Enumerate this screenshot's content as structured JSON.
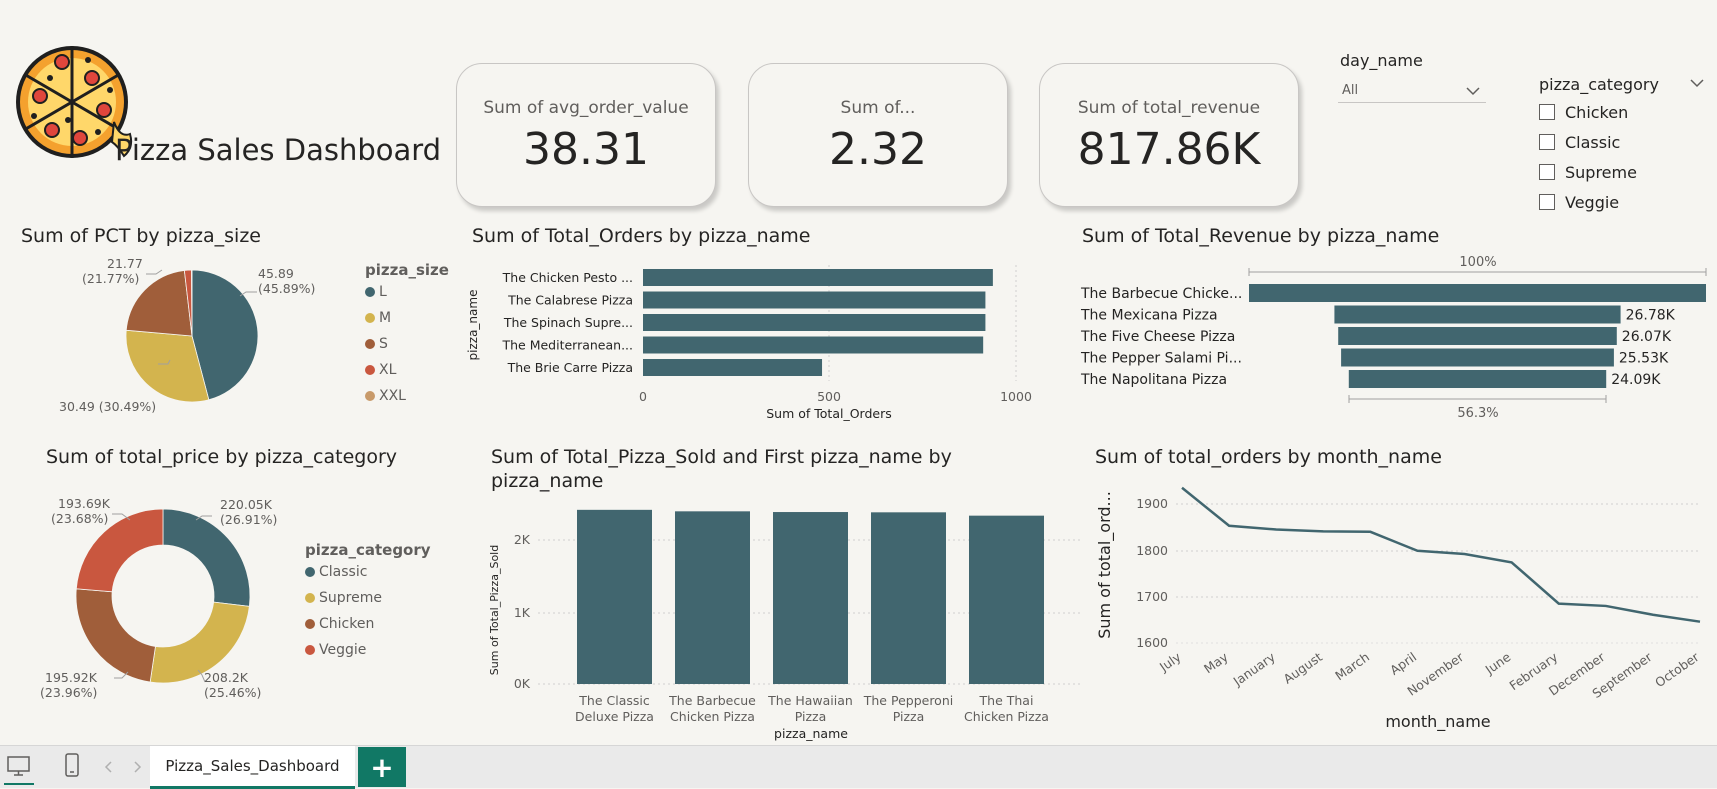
{
  "header": {
    "title": "Pizza Sales Dashboard"
  },
  "kpis": [
    {
      "label": "Sum of avg_order_value",
      "value": "38.31"
    },
    {
      "label": "Sum of...",
      "value": "2.32"
    },
    {
      "label": "Sum of total_revenue",
      "value": "817.86K"
    }
  ],
  "day_slicer": {
    "title": "day_name",
    "selected": "All"
  },
  "category_slicer": {
    "title": "pizza_category",
    "options": [
      "Chicken",
      "Classic",
      "Supreme",
      "Veggie"
    ]
  },
  "colors": {
    "teal": "#41666f",
    "gold": "#d3b44e",
    "brown": "#a05e3a",
    "red": "#c9573f",
    "tan": "#c89a6a",
    "accent": "#117865"
  },
  "pie_size": {
    "title": "Sum of PCT by pizza_size",
    "legend_title": "pizza_size",
    "legend": [
      "L",
      "M",
      "S",
      "XL",
      "XXL"
    ],
    "labels": {
      "l": "45.89",
      "l_pct": "(45.89%)",
      "m": "30.49 (30.49%)",
      "s": "21.77",
      "s_pct": "(21.77%)"
    }
  },
  "orders_by_name": {
    "title": "Sum of Total_Orders by pizza_name",
    "ylabel": "pizza_name",
    "xlabel": "Sum of Total_Orders",
    "ticks": [
      "0",
      "500",
      "1000"
    ],
    "names": [
      "The Chicken Pesto ...",
      "The Calabrese Pizza",
      "The Spinach Supre...",
      "The Mediterranean...",
      "The Brie Carre Pizza"
    ]
  },
  "revenue_by_name": {
    "title": "Sum of Total_Revenue by pizza_name",
    "top_label": "100%",
    "bottom_label": "56.3%",
    "names": [
      "The Barbecue Chicke...",
      "The Mexicana Pizza",
      "The Five Cheese Pizza",
      "The Pepper Salami Pi...",
      "The Napolitana Pizza"
    ],
    "values": [
      "",
      "26.78K",
      "26.07K",
      "25.53K",
      "24.09K"
    ]
  },
  "donut_category": {
    "title": "Sum of total_price by pizza_category",
    "legend_title": "pizza_category",
    "legend": [
      "Classic",
      "Supreme",
      "Chicken",
      "Veggie"
    ],
    "labels": {
      "classic_v": "220.05K",
      "classic_p": "(26.91%)",
      "supreme_v": "208.2K",
      "supreme_p": "(25.46%)",
      "chicken_v": "195.92K",
      "chicken_p": "(23.96%)",
      "veggie_v": "193.69K",
      "veggie_p": "(23.68%)"
    }
  },
  "sold_by_name": {
    "title_1": "Sum of Total_Pizza_Sold and First pizza_name by",
    "title_2": "pizza_name",
    "ylabel": "Sum of Total_Pizza_Sold",
    "xlabel": "pizza_name",
    "ticks": [
      "2K",
      "1K",
      "0K"
    ],
    "cats_1": [
      "The Classic",
      "The Barbecue",
      "The Hawaiian",
      "The Pepperoni",
      "The Thai"
    ],
    "cats_2": [
      "Deluxe Pizza",
      "Chicken Pizza",
      "Pizza",
      "Pizza",
      "Chicken Pizza"
    ]
  },
  "orders_by_month": {
    "title": "Sum of total_orders by month_name",
    "ylabel": "Sum of total_ord...",
    "xlabel": "month_name",
    "ticks": [
      "1900",
      "1800",
      "1700",
      "1600"
    ],
    "months": [
      "July",
      "May",
      "January",
      "August",
      "March",
      "April",
      "November",
      "June",
      "February",
      "December",
      "September",
      "October"
    ]
  },
  "chart_data": [
    {
      "type": "pie",
      "title": "Sum of PCT by pizza_size",
      "categories": [
        "L",
        "M",
        "S",
        "XL",
        "XXL"
      ],
      "values": [
        45.89,
        30.49,
        21.77,
        1.72,
        0.12
      ]
    },
    {
      "type": "bar",
      "title": "Sum of Total_Orders by pizza_name",
      "categories": [
        "The Chicken Pesto ...",
        "The Calabrese Pizza",
        "The Spinach Supre...",
        "The Mediterranean...",
        "The Brie Carre Pizza"
      ],
      "values": [
        938,
        918,
        918,
        912,
        480
      ],
      "xlabel": "Sum of Total_Orders",
      "ylabel": "pizza_name",
      "xlim": [
        0,
        1000
      ]
    },
    {
      "type": "bar",
      "title": "Sum of Total_Revenue by pizza_name",
      "categories": [
        "The Barbecue Chicke...",
        "The Mexicana Pizza",
        "The Five Cheese Pizza",
        "The Pepper Salami Pi...",
        "The Napolitana Pizza"
      ],
      "values": [
        42768,
        26780,
        26070,
        25530,
        24090
      ]
    },
    {
      "type": "pie",
      "title": "Sum of total_price by pizza_category",
      "categories": [
        "Classic",
        "Supreme",
        "Chicken",
        "Veggie"
      ],
      "values": [
        220050,
        208200,
        195920,
        193690
      ]
    },
    {
      "type": "bar",
      "title": "Sum of Total_Pizza_Sold and First pizza_name by pizza_name",
      "categories": [
        "The Classic Deluxe Pizza",
        "The Barbecue Chicken Pizza",
        "The Hawaiian Pizza",
        "The Pepperoni Pizza",
        "The Thai Chicken Pizza"
      ],
      "values": [
        2453,
        2432,
        2422,
        2418,
        2371
      ],
      "xlabel": "pizza_name",
      "ylabel": "Sum of Total_Pizza_Sold",
      "ylim": [
        0,
        2500
      ]
    },
    {
      "type": "line",
      "title": "Sum of total_orders by month_name",
      "categories": [
        "July",
        "May",
        "January",
        "August",
        "March",
        "April",
        "November",
        "June",
        "February",
        "December",
        "September",
        "October"
      ],
      "values": [
        1935,
        1853,
        1845,
        1841,
        1840,
        1799,
        1792,
        1774,
        1685,
        1680,
        1661,
        1646
      ],
      "xlabel": "month_name",
      "ylabel": "Sum of total_ord...",
      "ylim": [
        1600,
        1950
      ]
    }
  ],
  "footer": {
    "tab_label": "Pizza_Sales_Dashboard",
    "add_label": "+"
  }
}
